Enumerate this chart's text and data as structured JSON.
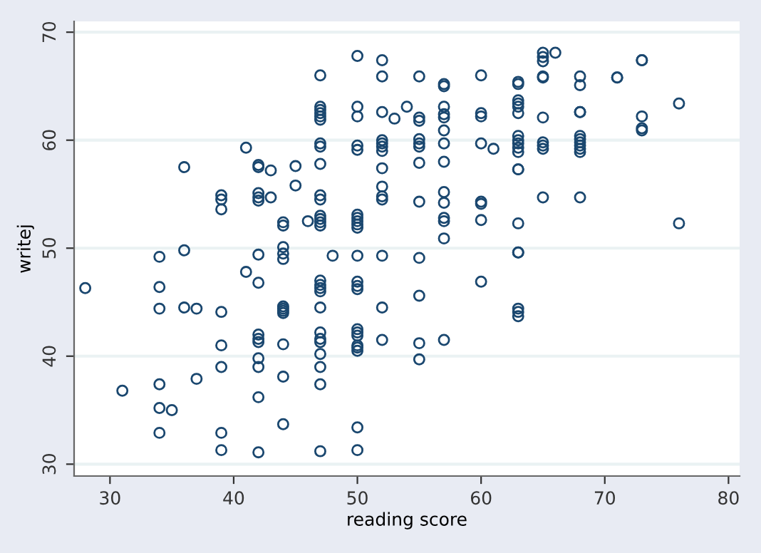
{
  "chart_data": {
    "type": "scatter",
    "xlabel": "reading score",
    "ylabel": "writej",
    "xlim": [
      27.1,
      80.9
    ],
    "ylim": [
      28.9,
      71
    ],
    "xticks": [
      30,
      40,
      50,
      60,
      70,
      80
    ],
    "yticks": [
      30,
      40,
      50,
      60,
      70
    ],
    "grid": "y",
    "marker": "circle",
    "series": [
      {
        "color": "#1a476f",
        "x": [
          28,
          31,
          34,
          34,
          34,
          34,
          34,
          34,
          35,
          36,
          36,
          36,
          37,
          37,
          39,
          39,
          39,
          39,
          39,
          39,
          39,
          39,
          41,
          41,
          42,
          42,
          42,
          42,
          42,
          42,
          42,
          42,
          42,
          42,
          42,
          42,
          42,
          42,
          43,
          43,
          44,
          44,
          44,
          44,
          44,
          44,
          44,
          44,
          44,
          44,
          44,
          44,
          45,
          45,
          46,
          47,
          47,
          47,
          47,
          47,
          47,
          47,
          47,
          47,
          47,
          47,
          47,
          47,
          47,
          47,
          47,
          47,
          47,
          47,
          47,
          47,
          47,
          47,
          47,
          47,
          47,
          47,
          48,
          50,
          50,
          50,
          50,
          50,
          50,
          50,
          50,
          50,
          50,
          50,
          50,
          50,
          50,
          50,
          50,
          50,
          50,
          50,
          50,
          50,
          50,
          52,
          52,
          52,
          52,
          52,
          52,
          52,
          52,
          52,
          52,
          52,
          52,
          52,
          52,
          53,
          54,
          55,
          55,
          55,
          55,
          55,
          55,
          55,
          55,
          55,
          55,
          55,
          55,
          57,
          57,
          57,
          57,
          57,
          57,
          57,
          57,
          57,
          57,
          57,
          57,
          57,
          57,
          60,
          60,
          60,
          60,
          60,
          60,
          60,
          60,
          61,
          63,
          63,
          63,
          63,
          63,
          63,
          63,
          63,
          63,
          63,
          63,
          63,
          63,
          63,
          63,
          63,
          63,
          63,
          63,
          65,
          65,
          65,
          65,
          65,
          65,
          65,
          65,
          65,
          65,
          66,
          68,
          68,
          68,
          68,
          68,
          68,
          68,
          68,
          68,
          68,
          68,
          71,
          71,
          73,
          73,
          73,
          73,
          73,
          76,
          76
        ],
        "values": [
          46.3,
          36.8,
          49.2,
          46.4,
          44.4,
          37.4,
          35.2,
          32.9,
          35.0,
          57.5,
          49.8,
          44.5,
          44.4,
          37.9,
          54.9,
          54.5,
          53.6,
          44.1,
          41.0,
          39.0,
          32.9,
          31.3,
          59.3,
          47.8,
          57.7,
          57.5,
          55.1,
          54.7,
          54.4,
          49.4,
          46.8,
          42.0,
          41.6,
          41.3,
          39.8,
          39.0,
          36.2,
          31.1,
          57.2,
          54.7,
          52.4,
          52.1,
          50.1,
          49.5,
          49.0,
          44.6,
          44.4,
          44.2,
          44.0,
          41.1,
          38.1,
          33.7,
          57.6,
          55.8,
          52.5,
          66.0,
          63.1,
          62.8,
          62.5,
          62.2,
          61.9,
          59.7,
          59.4,
          57.8,
          54.9,
          54.5,
          53.0,
          52.7,
          52.4,
          52.1,
          47.0,
          46.6,
          46.3,
          46.0,
          44.5,
          42.2,
          41.6,
          41.3,
          40.2,
          39.0,
          37.4,
          31.2,
          49.3,
          67.8,
          63.1,
          62.2,
          59.5,
          59.1,
          53.1,
          52.8,
          52.5,
          52.2,
          51.9,
          49.3,
          46.9,
          46.5,
          46.2,
          42.5,
          42.2,
          41.9,
          41.0,
          40.8,
          40.5,
          33.4,
          31.3,
          67.4,
          65.9,
          62.6,
          60.0,
          59.7,
          59.4,
          59.0,
          57.4,
          55.7,
          54.8,
          54.5,
          49.3,
          44.5,
          41.5,
          62.0,
          63.1,
          65.9,
          62.1,
          61.8,
          60.1,
          59.7,
          59.4,
          57.9,
          54.3,
          49.1,
          45.6,
          41.2,
          39.7,
          65.2,
          65.0,
          63.1,
          62.4,
          62.1,
          60.9,
          59.7,
          58.0,
          55.2,
          54.2,
          52.8,
          52.5,
          50.9,
          41.5,
          66.0,
          62.5,
          62.2,
          59.7,
          54.3,
          54.1,
          52.6,
          46.9,
          59.2,
          65.4,
          65.2,
          63.7,
          63.4,
          63.1,
          62.5,
          60.4,
          60.0,
          59.7,
          59.3,
          58.9,
          57.3,
          57.3,
          52.3,
          49.6,
          49.6,
          44.4,
          44.1,
          43.7,
          68.1,
          67.7,
          67.3,
          65.9,
          65.8,
          62.1,
          59.8,
          59.5,
          59.2,
          54.7,
          68.1,
          65.9,
          65.1,
          62.6,
          62.6,
          60.4,
          60.1,
          59.8,
          59.5,
          59.2,
          58.9,
          54.7,
          65.8,
          65.8,
          67.4,
          67.4,
          62.2,
          61.1,
          60.9,
          63.4,
          52.3
        ]
      }
    ]
  }
}
